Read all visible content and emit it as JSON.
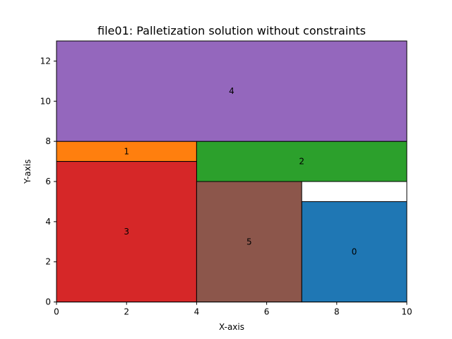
{
  "chart_data": {
    "type": "rectangles",
    "title": "file01: Palletization solution without constraints",
    "xlabel": "X-axis",
    "ylabel": "Y-axis",
    "xlim": [
      0,
      10
    ],
    "ylim": [
      0,
      13
    ],
    "xticks": [
      0,
      2,
      4,
      6,
      8,
      10
    ],
    "yticks": [
      0,
      2,
      4,
      6,
      8,
      10,
      12
    ],
    "grid": false,
    "rectangles": [
      {
        "label": "0",
        "x": 7,
        "y": 0,
        "width": 3,
        "height": 5,
        "color": "#1f77b4"
      },
      {
        "label": "1",
        "x": 0,
        "y": 7,
        "width": 4,
        "height": 1,
        "color": "#ff7f0e"
      },
      {
        "label": "2",
        "x": 4,
        "y": 6,
        "width": 6,
        "height": 2,
        "color": "#2ca02c"
      },
      {
        "label": "3",
        "x": 0,
        "y": 0,
        "width": 4,
        "height": 7,
        "color": "#d62728"
      },
      {
        "label": "4",
        "x": 0,
        "y": 8,
        "width": 10,
        "height": 5,
        "color": "#9467bd"
      },
      {
        "label": "5",
        "x": 4,
        "y": 0,
        "width": 3,
        "height": 6,
        "color": "#8c564b"
      }
    ]
  }
}
